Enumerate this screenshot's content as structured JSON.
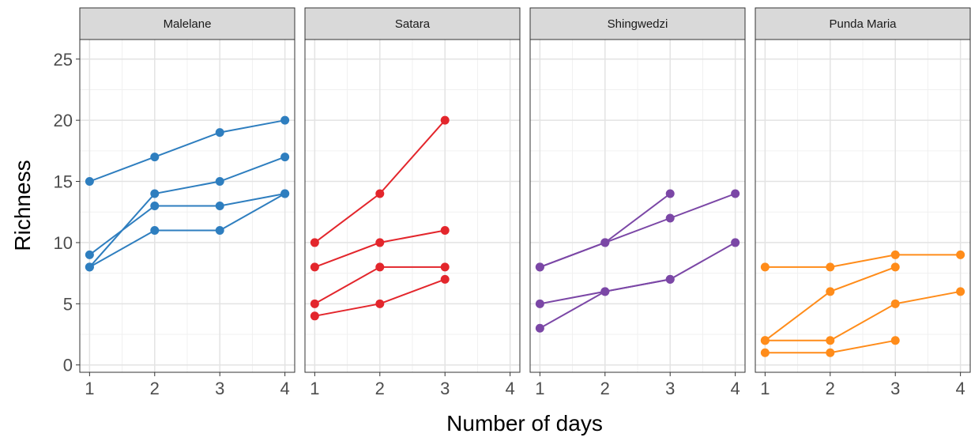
{
  "chart_data": {
    "type": "line",
    "xlabel": "Number of days",
    "ylabel": "Richness",
    "xlim": [
      0.85,
      4.15
    ],
    "ylim": [
      -0.6,
      26.6
    ],
    "x_ticks": [
      1,
      2,
      3,
      4
    ],
    "y_ticks": [
      0,
      5,
      10,
      15,
      20,
      25
    ],
    "grid": true,
    "legend": "none",
    "panels": [
      {
        "label": "Malelane",
        "color": "#2E7EBF",
        "series": [
          {
            "x": [
              1,
              2,
              3,
              4
            ],
            "y": [
              15,
              17,
              19,
              20
            ]
          },
          {
            "x": [
              1,
              2,
              3,
              4
            ],
            "y": [
              9,
              13,
              13,
              14
            ]
          },
          {
            "x": [
              1,
              2,
              3,
              4
            ],
            "y": [
              8,
              14,
              15,
              17
            ]
          },
          {
            "x": [
              1,
              2,
              3,
              4
            ],
            "y": [
              8,
              11,
              11,
              14
            ]
          }
        ]
      },
      {
        "label": "Satara",
        "color": "#E3262C",
        "series": [
          {
            "x": [
              1,
              2,
              3
            ],
            "y": [
              10,
              14,
              20
            ]
          },
          {
            "x": [
              1,
              2,
              3
            ],
            "y": [
              8,
              10,
              11
            ]
          },
          {
            "x": [
              1,
              2,
              3
            ],
            "y": [
              5,
              8,
              8
            ]
          },
          {
            "x": [
              1,
              2,
              3
            ],
            "y": [
              4,
              5,
              7
            ]
          }
        ]
      },
      {
        "label": "Shingwedzi",
        "color": "#7B47A6",
        "series": [
          {
            "x": [
              1,
              2,
              3
            ],
            "y": [
              8,
              10,
              14
            ]
          },
          {
            "x": [
              1,
              2,
              3,
              4
            ],
            "y": [
              8,
              10,
              12,
              14
            ]
          },
          {
            "x": [
              1,
              2,
              3,
              4
            ],
            "y": [
              5,
              6,
              7,
              10
            ]
          },
          {
            "x": [
              1,
              2,
              3
            ],
            "y": [
              3,
              6,
              7
            ]
          }
        ]
      },
      {
        "label": "Punda Maria",
        "color": "#FF8C1A",
        "series": [
          {
            "x": [
              1,
              2,
              3,
              4
            ],
            "y": [
              8,
              8,
              9,
              9
            ]
          },
          {
            "x": [
              1,
              2,
              3
            ],
            "y": [
              2,
              6,
              8
            ]
          },
          {
            "x": [
              1,
              2,
              3,
              4
            ],
            "y": [
              2,
              2,
              5,
              6
            ]
          },
          {
            "x": [
              1,
              2,
              3
            ],
            "y": [
              1,
              1,
              2
            ]
          }
        ]
      }
    ]
  }
}
